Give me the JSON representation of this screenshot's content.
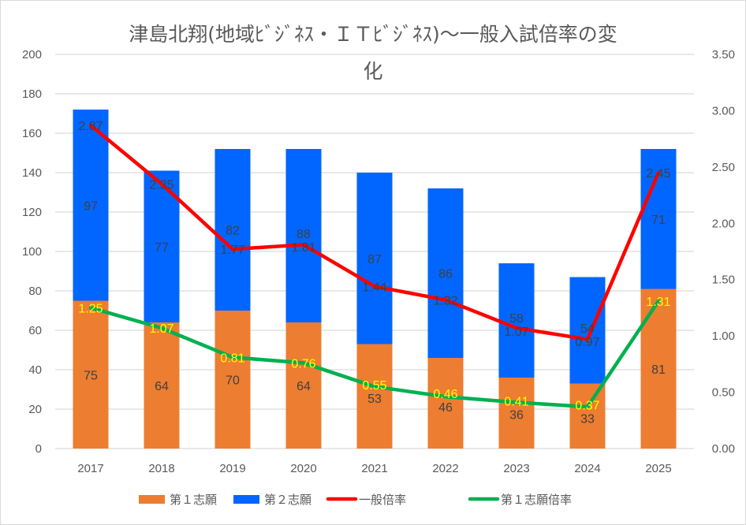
{
  "chart_data": {
    "type": "bar",
    "subtype": "stacked-bar-with-lines",
    "title": "津島北翔(地域ﾋﾞｼﾞﾈｽ・ＩＴﾋﾞｼﾞﾈｽ)～一般入試倍率の変化",
    "title_lines": [
      "津島北翔(地域ﾋﾞｼﾞﾈｽ・ＩＴﾋﾞｼﾞﾈｽ)～一般入試倍率の変",
      "化"
    ],
    "categories": [
      "2017",
      "2018",
      "2019",
      "2020",
      "2021",
      "2022",
      "2023",
      "2024",
      "2025"
    ],
    "series": [
      {
        "name": "第１志願",
        "kind": "bar",
        "axis": "left",
        "color": "#ed7d31",
        "label_color": "#404040",
        "values": [
          75,
          64,
          70,
          64,
          53,
          46,
          36,
          33,
          81
        ]
      },
      {
        "name": "第２志願",
        "kind": "bar",
        "axis": "left",
        "color": "#0066ff",
        "label_color": "#404040",
        "values": [
          97,
          77,
          82,
          88,
          87,
          86,
          58,
          54,
          71
        ]
      },
      {
        "name": "一般倍率",
        "kind": "line",
        "axis": "right",
        "color": "#ff0000",
        "label_color": "#404040",
        "values": [
          2.87,
          2.35,
          1.77,
          1.81,
          1.44,
          1.32,
          1.07,
          0.97,
          2.45
        ],
        "labels": [
          "2.87",
          "2.35",
          "1.77",
          "1.81",
          "1.44",
          "1.32",
          "1.07",
          "0.97",
          "2.45"
        ]
      },
      {
        "name": "第１志願倍率",
        "kind": "line",
        "axis": "right",
        "color": "#00b050",
        "label_color": "#ffff00",
        "values": [
          1.25,
          1.07,
          0.81,
          0.76,
          0.55,
          0.46,
          0.41,
          0.37,
          1.31
        ],
        "labels": [
          "1.25",
          "1.07",
          "0.81",
          "0.76",
          "0.55",
          "0.46",
          "0.41",
          "0.37",
          "1.31"
        ]
      }
    ],
    "y_left": {
      "min": 0,
      "max": 200,
      "step": 20,
      "ticks": [
        "0",
        "20",
        "40",
        "60",
        "80",
        "100",
        "120",
        "140",
        "160",
        "180",
        "200"
      ]
    },
    "y_right": {
      "min": 0,
      "max": 3.5,
      "step": 0.5,
      "ticks": [
        "0.00",
        "0.50",
        "1.00",
        "1.50",
        "2.00",
        "2.50",
        "3.00",
        "3.50"
      ]
    },
    "xlabel": "",
    "ylabel": "",
    "grid": true,
    "legend_position": "bottom",
    "legend": [
      "第１志願",
      "第２志願",
      "一般倍率",
      "第１志願倍率"
    ]
  }
}
